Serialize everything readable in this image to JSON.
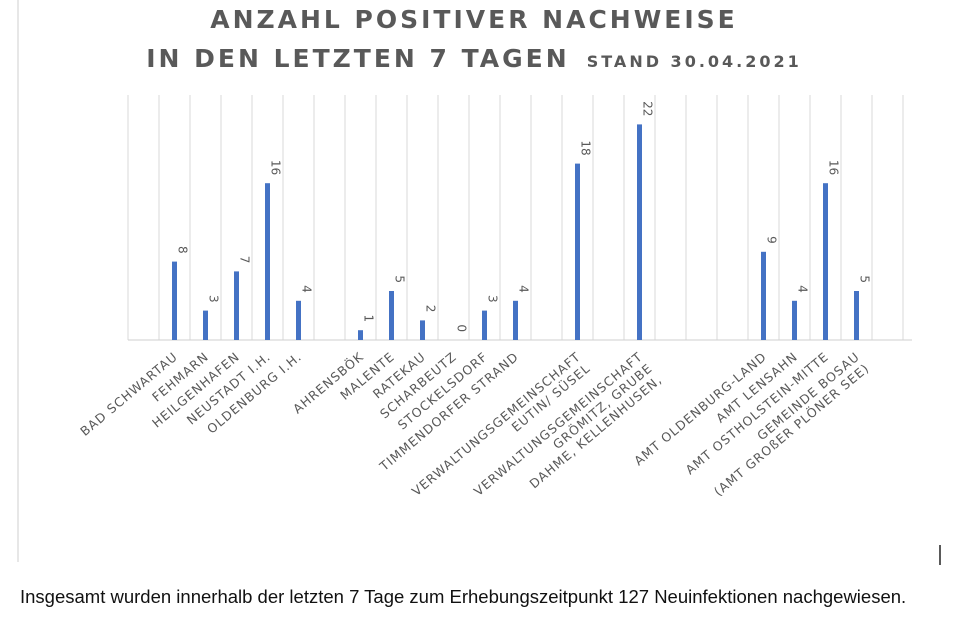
{
  "chart_data": {
    "type": "bar",
    "title_line1": "ANZAHL POSITIVER NACHWEISE",
    "title_line2": "IN DEN LETZTEN 7 TAGEN",
    "title_suffix": "STAND 30.04.2021",
    "categories": [
      "BAD SCHWARTAU",
      "FEHMARN",
      "HEILGENHAFEN",
      "NEUSTADT I.H.",
      "OLDENBURG I.H.",
      "AHRENSBÖK",
      "MALENTE",
      "RATEKAU",
      "SCHARBEUTZ",
      "STOCKELSDORF",
      "TIMMENDORFER STRAND",
      "VERWALTUNGSGEMEINSCHAFT EUTIN/ SÜSEL",
      "VERWALTUNGSGEMEINSCHAFT GRÖMITZ, GRUBE DAHME, KELLENHUSEN,",
      "AMT OLDENBURG-LAND",
      "AMT LENSAHN",
      "AMT OSTHOLSTEIN-MITTE",
      "GEMEINDE BOSAU (AMT GROßER PLÖNER SEE)"
    ],
    "category_lines": [
      [
        "BAD SCHWARTAU"
      ],
      [
        "FEHMARN"
      ],
      [
        "HEILGENHAFEN"
      ],
      [
        "NEUSTADT I.H."
      ],
      [
        "OLDENBURG I.H."
      ],
      [
        "AHRENSBÖK"
      ],
      [
        "MALENTE"
      ],
      [
        "RATEKAU"
      ],
      [
        "SCHARBEUTZ"
      ],
      [
        "STOCKELSDORF"
      ],
      [
        "TIMMENDORFER STRAND"
      ],
      [
        "VERWALTUNGSGEMEINSCHAFT",
        "EUTIN/ SÜSEL"
      ],
      [
        "VERWALTUNGSGEMEINSCHAFT",
        "GRÖMITZ, GRUBE",
        "DAHME, KELLENHUSEN,"
      ],
      [
        "AMT OLDENBURG-LAND"
      ],
      [
        "AMT LENSAHN"
      ],
      [
        "AMT OSTHOLSTEIN-MITTE"
      ],
      [
        "GEMEINDE BOSAU",
        "(AMT GROßER PLÖNER SEE)"
      ]
    ],
    "values": [
      8,
      3,
      7,
      16,
      4,
      1,
      5,
      2,
      0,
      3,
      4,
      18,
      22,
      9,
      4,
      16,
      5
    ],
    "ylim": [
      0,
      25
    ],
    "grid": "vertical",
    "bar_color": "#4472c4",
    "gridline_color": "#d9d9d9",
    "title_color": "#595959"
  },
  "caption": "Insgesamt wurden innerhalb der letzten 7 Tage zum Erhebungszeitpunkt 127 Neuinfektionen nachgewiesen."
}
